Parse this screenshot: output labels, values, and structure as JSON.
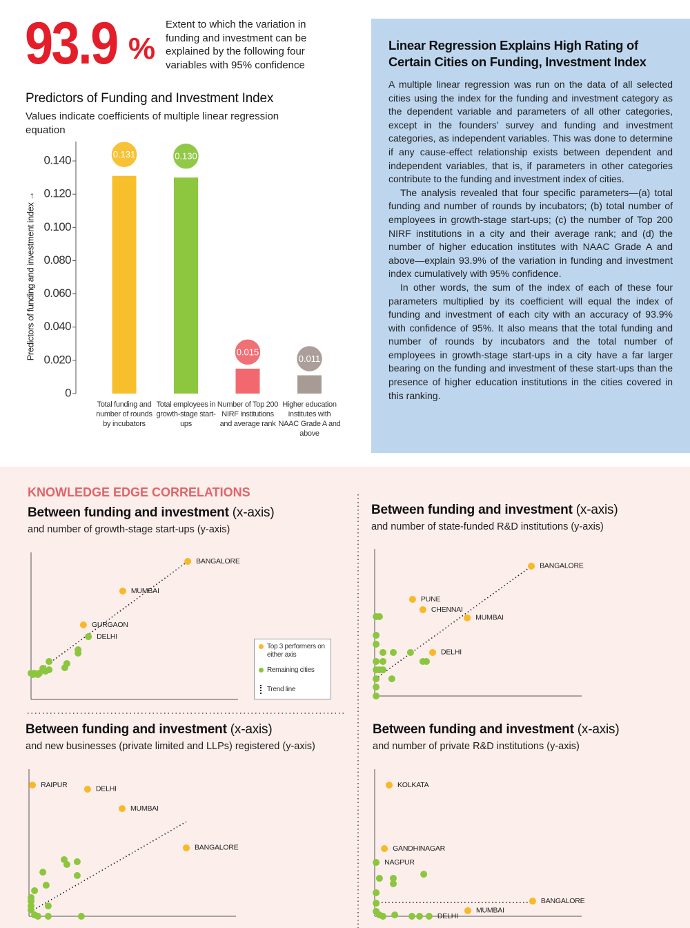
{
  "headline": {
    "figure": "93.9",
    "unit": "%",
    "caption": "Extent to which the variation in funding and investment can be explained by the following four variables with 95% confidence"
  },
  "article": {
    "title": "Linear Regression Explains High Rating of Certain Cities on Funding, Investment Index",
    "paragraphs": [
      "A multiple linear regression was run on the data of all selected cities using the index for the funding and investment category as the dependent variable and parameters of all other categories, except in the founders’ survey and funding and investment categories, as independent variables. This was done to determine if any cause-effect relationship exists between dependent and independent variables, that is, if parameters in other categories contribute to the funding and investment index of cities.",
      "The analysis revealed that four specific parameters—(a) total funding and number of rounds by incubators; (b) total number of employees in growth-stage start-ups; (c) the number of Top 200 NIRF institutions in a city and their average rank; and (d) the number of higher education institutes with NAAC Grade A and above—explain 93.9% of the variation in funding and investment index cumulatively with 95% confidence.",
      "In other words, the sum of the index of each of these four parameters multiplied by its coefficient will equal the index of funding and investment of each city with an accuracy of 93.9% with confidence of 95%. It also means that the total funding and number of rounds by incubators and the total number of employees in growth-stage start-ups in a city have a far larger bearing on the funding and investment of these start-ups than the presence of higher education institutions in the cities covered in this ranking."
    ]
  },
  "section_title": "KNOWLEDGE EDGE CORRELATIONS",
  "chart_data": [
    {
      "type": "bar",
      "title": "Predictors of Funding and Investment Index",
      "subtitle": "Values indicate coefficients of multiple linear regression equation",
      "y_label": "Predictors of funding and investment index →",
      "categories": [
        "Total funding and number of rounds by incubators",
        "Total employees in growth-stage start-ups",
        "Number of Top 200 NIRF institutions and average rank",
        "Higher education institutes with NAAC Grade A and above"
      ],
      "values": [
        0.131,
        0.13,
        0.015,
        0.011
      ],
      "value_labels": [
        "0.131",
        "0.130",
        "0.015",
        "0.011"
      ],
      "colors": [
        "#f8bf2c",
        "#8dc63f",
        "#f1696f",
        "#a89a94"
      ],
      "ylim": [
        0,
        0.15
      ],
      "yticks": [
        0,
        {
          "value": 0.02,
          "label": "0.020"
        },
        {
          "value": 0.04,
          "label": "0.040"
        },
        {
          "value": 0.06,
          "label": "0.060"
        },
        {
          "value": 0.08,
          "label": "0.080"
        },
        {
          "value": 0.1,
          "label": "0.100"
        },
        {
          "value": 0.12,
          "label": "0.120"
        },
        {
          "value": 0.14,
          "label": "0.140"
        }
      ]
    },
    {
      "type": "scatter",
      "title": "Between funding and investment",
      "title_note": "(x-axis)",
      "subtitle": "and number of growth-stage start-ups (y-axis)",
      "xlim": [
        0,
        100
      ],
      "ylim": [
        0,
        100
      ],
      "legend": true,
      "series": [
        {
          "name": "Top 3 performers on either axis",
          "color": "#f7b928",
          "x": [
            75.7,
            44.3,
            25.3
          ],
          "y": [
            93.9,
            73.7,
            50.7
          ],
          "labels": [
            "BANGALORE",
            "MUMBAI",
            "GURGAON"
          ]
        },
        {
          "name": "Remaining cities",
          "color": "#8cc63f",
          "x": [
            27.7,
            22.7,
            22.7,
            17.3,
            16.3,
            8.7,
            8.7,
            7,
            5.7,
            4,
            1.7,
            0,
            1,
            3.3
          ],
          "y": [
            42.7,
            33.8,
            31.5,
            24.4,
            21.6,
            25.8,
            20.2,
            19.2,
            21.1,
            17.8,
            17.8,
            17.8,
            16.9,
            16.9
          ],
          "labels": [
            "DELHI",
            null,
            null,
            null,
            null,
            null,
            null,
            null,
            null,
            null,
            null,
            null,
            null,
            null
          ]
        }
      ],
      "trend": {
        "name": "Trend line",
        "x": [
          0,
          75.7
        ],
        "y": [
          15.5,
          93.9
        ]
      }
    },
    {
      "type": "scatter",
      "title": "Between funding and investment",
      "title_note": "(x-axis)",
      "subtitle": "and number of state-funded R&D institutions (y-axis)",
      "xlim": [
        0,
        100
      ],
      "ylim": [
        0,
        100
      ],
      "legend": false,
      "series": [
        {
          "color": "#f7b928",
          "x": [
            75.7,
            18.3,
            23.3,
            44.7,
            28
          ],
          "y": [
            88.3,
            65.7,
            58.7,
            53.1,
            29.6
          ],
          "labels": [
            "BANGALORE",
            "PUNE",
            "CHENNAI",
            "MUMBAI",
            "DELHI"
          ]
        },
        {
          "color": "#8cc63f",
          "x": [
            0.7,
            2.3,
            0.7,
            0.7,
            4,
            9,
            17.3,
            23.3,
            25,
            4,
            0.7,
            0.7,
            2.3,
            4,
            0.7,
            8.3,
            0.7,
            0.7
          ],
          "y": [
            54,
            54,
            41.3,
            35.2,
            29.6,
            29.6,
            29.6,
            23.5,
            23.5,
            23.5,
            23.5,
            17.8,
            17.8,
            17.8,
            11.7,
            11.7,
            6.1,
            0
          ]
        }
      ],
      "trend": {
        "x": [
          1.7,
          75.7
        ],
        "y": [
          13.1,
          88.3
        ]
      }
    },
    {
      "type": "scatter",
      "title": "Between funding and investment",
      "title_note": "(x-axis)",
      "subtitle": "and new businesses (private limited and LLPs) registered (y-axis)",
      "xlim": [
        0,
        100
      ],
      "ylim": [
        0,
        100
      ],
      "legend": false,
      "series": [
        {
          "color": "#f7b928",
          "x": [
            1.7,
            28.3,
            45,
            76
          ],
          "y": [
            89.2,
            86.4,
            73.2,
            46.5
          ],
          "labels": [
            "RAIPUR",
            "DELHI",
            "MUMBAI",
            "BANGALORE"
          ]
        },
        {
          "color": "#8cc63f",
          "x": [
            17,
            18.3,
            23.3,
            23.3,
            6.7,
            8.3,
            2.7,
            1,
            1,
            1,
            1,
            2.7,
            9.3,
            9.3,
            25.3,
            4.3
          ],
          "y": [
            38.5,
            35.2,
            37.1,
            27.7,
            30,
            21.1,
            17.4,
            12.7,
            10.3,
            7,
            4.2,
            0.9,
            7,
            0,
            0,
            0
          ]
        }
      ],
      "trend": {
        "x": [
          2,
          76
        ],
        "y": [
          4.2,
          64.3
        ]
      }
    },
    {
      "type": "scatter",
      "title": "Between funding and investment",
      "title_note": "(x-axis)",
      "subtitle": "and number of private R&D institutions (y-axis)",
      "xlim": [
        0,
        100
      ],
      "ylim": [
        0,
        100
      ],
      "legend": false,
      "series": [
        {
          "color": "#f7b928",
          "x": [
            7,
            4.7,
            76.3,
            45
          ],
          "y": [
            89.2,
            46,
            10.3,
            3.8
          ],
          "labels": [
            "KOLKATA",
            "GANDHINAGAR",
            "BANGALORE",
            "MUMBAI"
          ]
        },
        {
          "color": "#8cc63f",
          "x": [
            0.7,
            26.3,
            2.3,
            9,
            9,
            23.7,
            0.7,
            0.7,
            0.7,
            2.3,
            4,
            9.7,
            18,
            21.7
          ],
          "y": [
            36.6,
            0,
            25.8,
            25.8,
            22.1,
            28.6,
            16,
            8.9,
            3.3,
            0.9,
            0,
            0.9,
            0,
            0
          ],
          "labels": [
            "NAGPUR",
            "DELHI",
            null,
            null,
            null,
            null,
            null,
            null,
            null,
            null,
            null,
            null,
            null,
            null
          ]
        }
      ],
      "trend": {
        "x": [
          1.7,
          75.7
        ],
        "y": [
          9.4,
          9.4
        ]
      }
    }
  ]
}
